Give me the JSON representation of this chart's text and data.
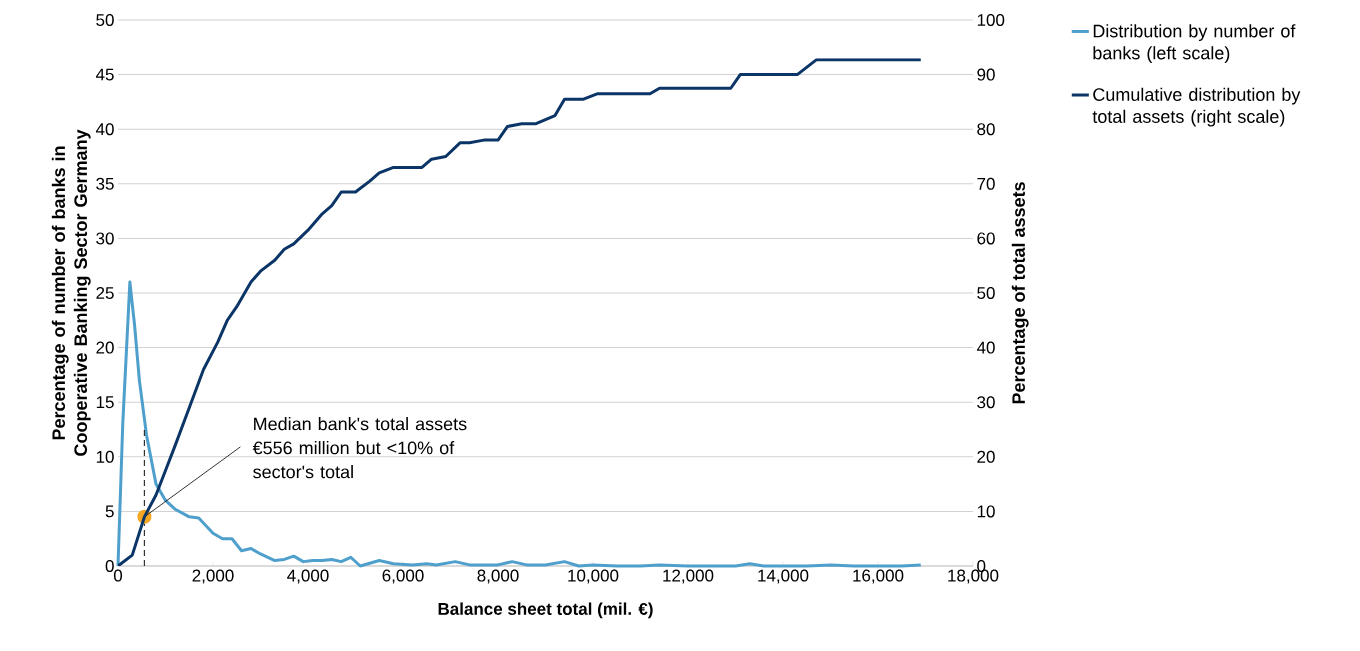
{
  "chart_data": {
    "type": "line",
    "xlabel": "Balance sheet total (mil. €)",
    "ylabel": "Percentage of number of banks in Cooperative Banking Sector Germany",
    "y2label": "Percentage of total assets",
    "xlim": [
      0,
      18000
    ],
    "xticks": [
      0,
      {
        "value": 2000,
        "label": "2,000"
      },
      {
        "value": 4000,
        "label": "4,000"
      },
      {
        "value": 6000,
        "label": "6,000"
      },
      {
        "value": 8000,
        "label": "8,000"
      },
      {
        "value": 10000,
        "label": "10,000"
      },
      {
        "value": 12000,
        "label": "12,000"
      },
      {
        "value": 14000,
        "label": "14,000"
      },
      {
        "value": 16000,
        "label": "16,000"
      },
      {
        "value": 18000,
        "label": "18,000"
      }
    ],
    "ylim": [
      0,
      50
    ],
    "yticks": [
      0,
      5,
      10,
      15,
      20,
      25,
      30,
      35,
      40,
      45,
      50
    ],
    "y2lim": [
      0,
      100
    ],
    "y2ticks": [
      0,
      10,
      20,
      30,
      40,
      50,
      60,
      70,
      80,
      90,
      100
    ],
    "grid": "y",
    "legend": "right",
    "marker": "none",
    "line_style": "solid",
    "series": [
      {
        "name": "Distribution by number of banks (left scale)",
        "color": "#4f9fcc",
        "x": [
          0,
          100,
          250,
          350,
          450,
          600,
          800,
          1000,
          1200,
          1500,
          1700,
          2000,
          2200,
          2400,
          2600,
          2800,
          3000,
          3300,
          3500,
          3700,
          3900,
          4100,
          4300,
          4500,
          4700,
          4900,
          5100,
          5500,
          5800,
          6200,
          6500,
          6700,
          7100,
          7400,
          7700,
          8000,
          8300,
          8600,
          9000,
          9400,
          9700,
          10000,
          10500,
          11000,
          11400,
          12000,
          13000,
          13300,
          13600,
          14000,
          14500,
          15000,
          15500,
          16500,
          16900
        ],
        "values": [
          0,
          13,
          26,
          22,
          17,
          12,
          7.5,
          6,
          5.2,
          4.5,
          4.4,
          3,
          2.5,
          2.5,
          1.4,
          1.6,
          1.1,
          0.5,
          0.6,
          0.9,
          0.4,
          0.5,
          0.5,
          0.6,
          0.4,
          0.8,
          0,
          0.5,
          0.2,
          0.1,
          0.2,
          0.1,
          0.4,
          0.1,
          0.1,
          0.1,
          0.4,
          0.1,
          0.1,
          0.4,
          0,
          0.1,
          0,
          0,
          0.1,
          0,
          0,
          0.2,
          0,
          0,
          0,
          0.1,
          0,
          0,
          0.1
        ]
      },
      {
        "name": "Cumulative distribution by total assets (right scale)",
        "color": "#0b3566",
        "axis": "y2",
        "x": [
          0,
          300,
          556,
          800,
          1000,
          1200,
          1500,
          1800,
          2100,
          2300,
          2500,
          2800,
          3000,
          3300,
          3500,
          3700,
          4000,
          4300,
          4500,
          4700,
          5000,
          5300,
          5500,
          5800,
          6000,
          6400,
          6600,
          6900,
          7200,
          7400,
          7700,
          8000,
          8200,
          8500,
          8800,
          9200,
          9400,
          9800,
          10100,
          11000,
          11200,
          11400,
          12900,
          13100,
          14300,
          14700,
          16900
        ],
        "values": [
          0,
          2,
          9,
          13,
          17.5,
          22,
          29,
          36,
          41,
          45,
          47.5,
          52,
          54,
          56,
          58,
          59,
          61.5,
          64.5,
          66,
          68.5,
          68.5,
          70.5,
          72,
          73,
          73,
          73,
          74.5,
          75,
          77.5,
          77.5,
          78,
          78,
          80.5,
          81,
          81,
          82.5,
          85.5,
          85.5,
          86.5,
          86.5,
          86.5,
          87.5,
          87.5,
          90,
          90,
          92.7,
          92.7
        ]
      }
    ],
    "annotations": [
      {
        "text": "Median bank's total assets €556 million but <10% of sector's total",
        "x": 556,
        "y": 4.5
      }
    ],
    "ref_lines": [
      {
        "axis": "x",
        "value": 556,
        "color": "#333333",
        "line_style": "dashed"
      }
    ]
  }
}
